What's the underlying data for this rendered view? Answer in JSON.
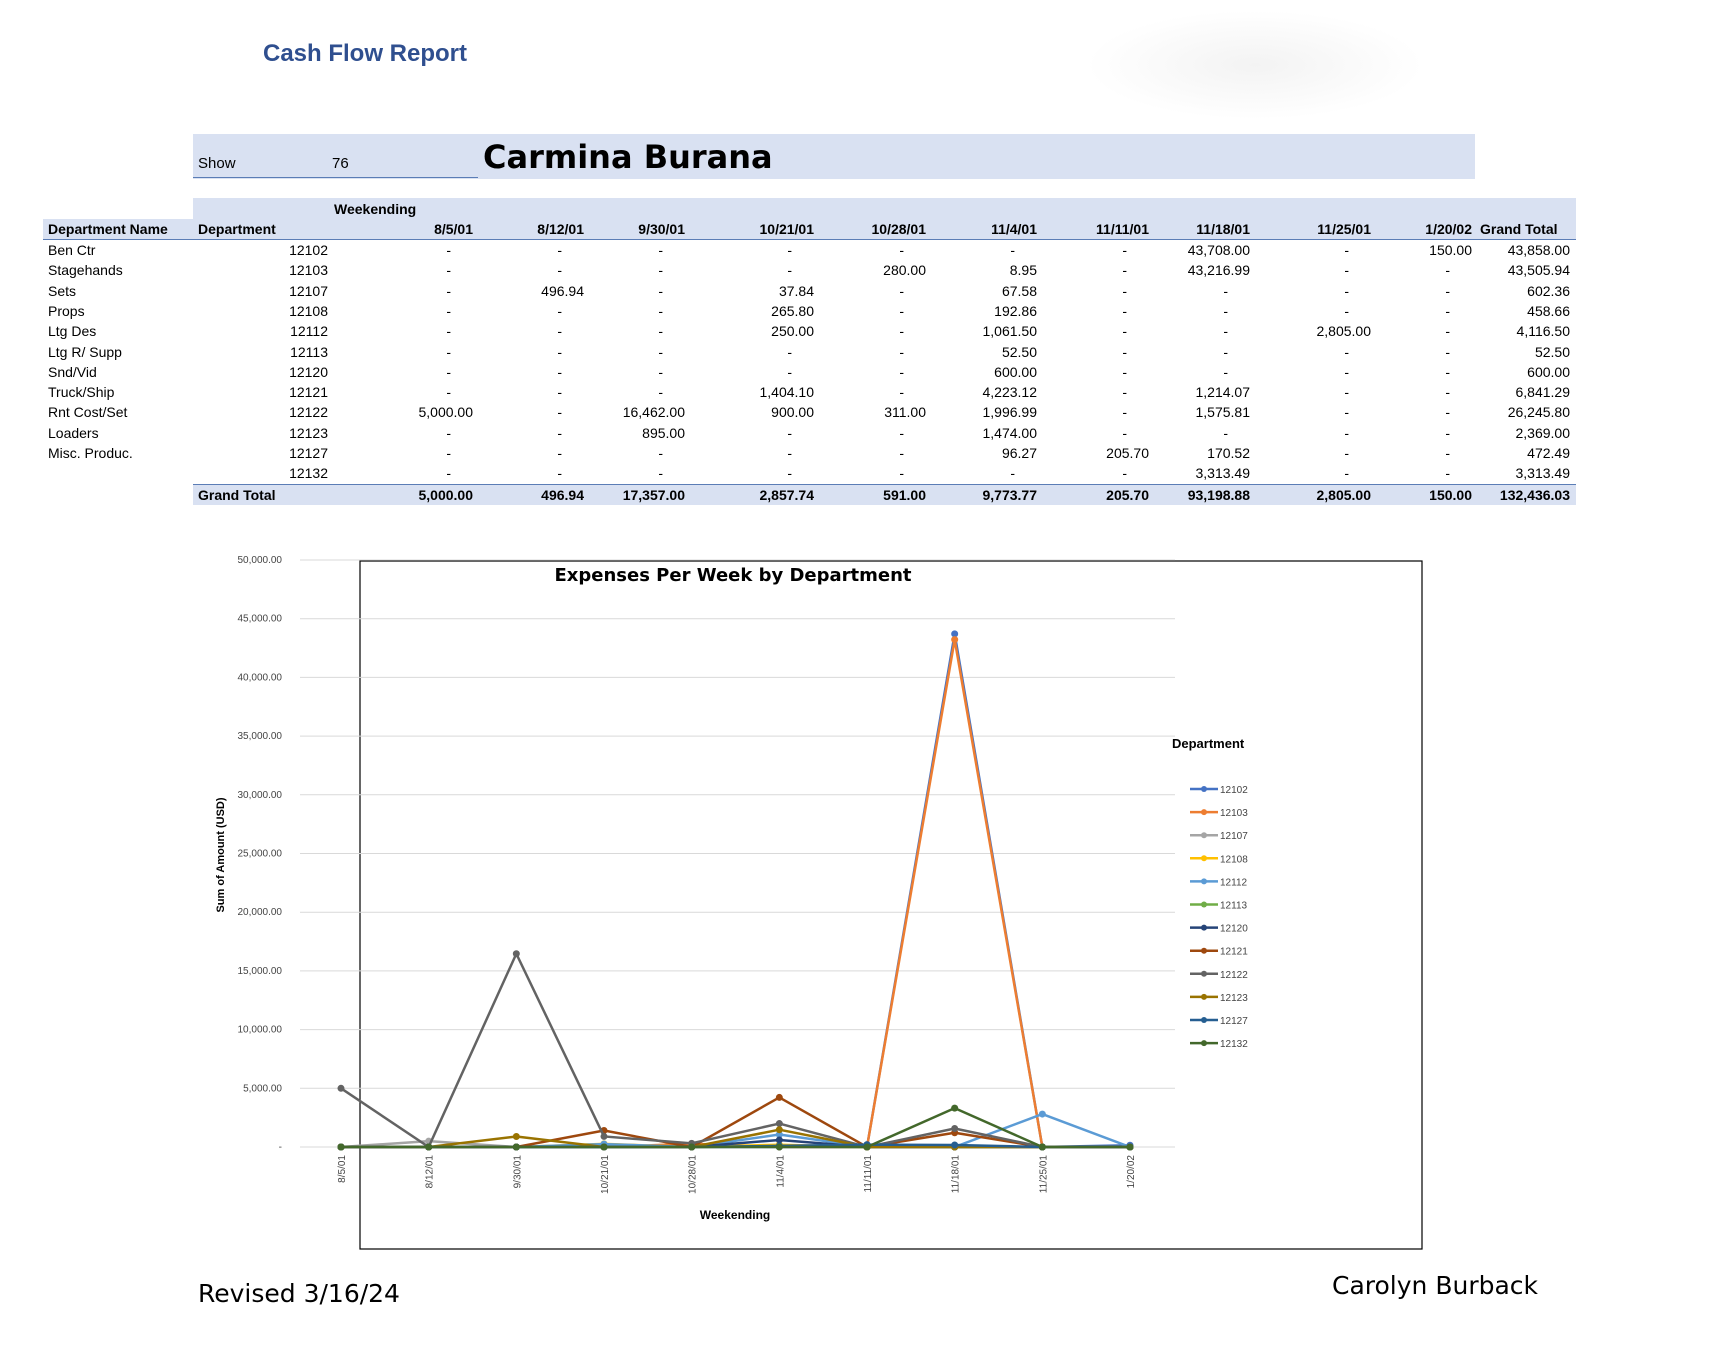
{
  "report": {
    "title": "Cash Flow Report"
  },
  "show": {
    "label": "Show",
    "number": "76",
    "title": "Carmina Burana"
  },
  "table": {
    "weekending_label": "Weekending",
    "dept_name_header": "Department Name",
    "dept_header": "Department",
    "grand_total_header": "Grand Total",
    "dates": [
      "8/5/01",
      "8/12/01",
      "9/30/01",
      "10/21/01",
      "10/28/01",
      "11/4/01",
      "11/11/01",
      "11/18/01",
      "11/25/01",
      "1/20/02"
    ],
    "rows": [
      {
        "name": "Ben Ctr",
        "dept": "12102",
        "values": [
          "-",
          "-",
          "-",
          "-",
          "-",
          "-",
          "-",
          "43,708.00",
          "-",
          "150.00"
        ],
        "total": "43,858.00"
      },
      {
        "name": "Stagehands",
        "dept": "12103",
        "values": [
          "-",
          "-",
          "-",
          "-",
          "280.00",
          "8.95",
          "-",
          "43,216.99",
          "-",
          "-"
        ],
        "total": "43,505.94"
      },
      {
        "name": "Sets",
        "dept": "12107",
        "values": [
          "-",
          "496.94",
          "-",
          "37.84",
          "-",
          "67.58",
          "-",
          "-",
          "-",
          "-"
        ],
        "total": "602.36"
      },
      {
        "name": "Props",
        "dept": "12108",
        "values": [
          "-",
          "-",
          "-",
          "265.80",
          "-",
          "192.86",
          "-",
          "-",
          "-",
          "-"
        ],
        "total": "458.66"
      },
      {
        "name": "Ltg Des",
        "dept": "12112",
        "values": [
          "-",
          "-",
          "-",
          "250.00",
          "-",
          "1,061.50",
          "-",
          "-",
          "2,805.00",
          "-"
        ],
        "total": "4,116.50"
      },
      {
        "name": "Ltg R/ Supp",
        "dept": "12113",
        "values": [
          "-",
          "-",
          "-",
          "-",
          "-",
          "52.50",
          "-",
          "-",
          "-",
          "-"
        ],
        "total": "52.50"
      },
      {
        "name": "Snd/Vid",
        "dept": "12120",
        "values": [
          "-",
          "-",
          "-",
          "-",
          "-",
          "600.00",
          "-",
          "-",
          "-",
          "-"
        ],
        "total": "600.00"
      },
      {
        "name": "Truck/Ship",
        "dept": "12121",
        "values": [
          "-",
          "-",
          "-",
          "1,404.10",
          "-",
          "4,223.12",
          "-",
          "1,214.07",
          "-",
          "-"
        ],
        "total": "6,841.29"
      },
      {
        "name": "Rnt Cost/Set",
        "dept": "12122",
        "values": [
          "5,000.00",
          "-",
          "16,462.00",
          "900.00",
          "311.00",
          "1,996.99",
          "-",
          "1,575.81",
          "-",
          "-"
        ],
        "total": "26,245.80"
      },
      {
        "name": "Loaders",
        "dept": "12123",
        "values": [
          "-",
          "-",
          "895.00",
          "-",
          "-",
          "1,474.00",
          "-",
          "-",
          "-",
          "-"
        ],
        "total": "2,369.00"
      },
      {
        "name": "Misc. Produc.",
        "dept": "12127",
        "values": [
          "-",
          "-",
          "-",
          "-",
          "-",
          "96.27",
          "205.70",
          "170.52",
          "-",
          "-"
        ],
        "total": "472.49"
      },
      {
        "name": "",
        "dept": "12132",
        "values": [
          "-",
          "-",
          "-",
          "-",
          "-",
          "-",
          "-",
          "3,313.49",
          "-",
          "-"
        ],
        "total": "3,313.49"
      }
    ],
    "grand_total_label": "Grand Total",
    "grand_totals": [
      "5,000.00",
      "496.94",
      "17,357.00",
      "2,857.74",
      "591.00",
      "9,773.77",
      "205.70",
      "93,198.88",
      "2,805.00",
      "150.00"
    ],
    "grand_total_all": "132,436.03"
  },
  "chart_data": {
    "type": "line",
    "title": "Expenses Per Week by Department",
    "xlabel": "Weekending",
    "ylabel": "Sum of Amount  (USD)",
    "legend_title": "Department",
    "legend_position": "right",
    "grid": true,
    "ylim": [
      0,
      50000
    ],
    "y_ticks": [
      {
        "value": 0,
        "label": "-"
      },
      {
        "value": 5000,
        "label": "5,000.00"
      },
      {
        "value": 10000,
        "label": "10,000.00"
      },
      {
        "value": 15000,
        "label": "15,000.00"
      },
      {
        "value": 20000,
        "label": "20,000.00"
      },
      {
        "value": 25000,
        "label": "25,000.00"
      },
      {
        "value": 30000,
        "label": "30,000.00"
      },
      {
        "value": 35000,
        "label": "35,000.00"
      },
      {
        "value": 40000,
        "label": "40,000.00"
      },
      {
        "value": 45000,
        "label": "45,000.00"
      },
      {
        "value": 50000,
        "label": "50,000.00"
      }
    ],
    "categories": [
      "8/5/01",
      "8/12/01",
      "9/30/01",
      "10/21/01",
      "10/28/01",
      "11/4/01",
      "11/11/01",
      "11/18/01",
      "11/25/01",
      "1/20/02"
    ],
    "series": [
      {
        "name": "12102",
        "color": "#4472c4",
        "values": [
          0,
          0,
          0,
          0,
          0,
          0,
          0,
          43708,
          0,
          150
        ]
      },
      {
        "name": "12103",
        "color": "#ed7d31",
        "values": [
          0,
          0,
          0,
          0,
          280,
          8.95,
          0,
          43216.99,
          0,
          0
        ]
      },
      {
        "name": "12107",
        "color": "#a5a5a5",
        "values": [
          0,
          496.94,
          0,
          37.84,
          0,
          67.58,
          0,
          0,
          0,
          0
        ]
      },
      {
        "name": "12108",
        "color": "#ffc000",
        "values": [
          0,
          0,
          0,
          265.8,
          0,
          192.86,
          0,
          0,
          0,
          0
        ]
      },
      {
        "name": "12112",
        "color": "#5b9bd5",
        "values": [
          0,
          0,
          0,
          250,
          0,
          1061.5,
          0,
          0,
          2805,
          0
        ]
      },
      {
        "name": "12113",
        "color": "#70ad47",
        "values": [
          0,
          0,
          0,
          0,
          0,
          52.5,
          0,
          0,
          0,
          0
        ]
      },
      {
        "name": "12120",
        "color": "#264478",
        "values": [
          0,
          0,
          0,
          0,
          0,
          600,
          0,
          0,
          0,
          0
        ]
      },
      {
        "name": "12121",
        "color": "#9e480e",
        "values": [
          0,
          0,
          0,
          1404.1,
          0,
          4223.12,
          0,
          1214.07,
          0,
          0
        ]
      },
      {
        "name": "12122",
        "color": "#636363",
        "values": [
          5000,
          0,
          16462,
          900,
          311,
          1996.99,
          0,
          1575.81,
          0,
          0
        ]
      },
      {
        "name": "12123",
        "color": "#997300",
        "values": [
          0,
          0,
          895,
          0,
          0,
          1474,
          0,
          0,
          0,
          0
        ]
      },
      {
        "name": "12127",
        "color": "#255e91",
        "values": [
          0,
          0,
          0,
          0,
          0,
          96.27,
          205.7,
          170.52,
          0,
          0
        ]
      },
      {
        "name": "12132",
        "color": "#43682b",
        "values": [
          0,
          0,
          0,
          0,
          0,
          0,
          0,
          3313.49,
          0,
          0
        ]
      }
    ]
  },
  "footer": {
    "revised": "Revised 3/16/24",
    "author": "Carolyn Burback"
  }
}
